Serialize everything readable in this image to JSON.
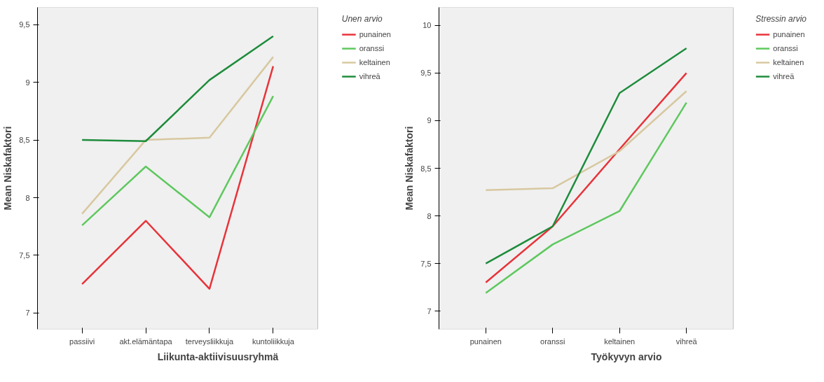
{
  "chart_data": [
    {
      "type": "line",
      "xlabel": "Liikunta-aktiivisuusryhmä",
      "ylabel": "Mean Niskafaktori",
      "legend_title": "Unen arvio",
      "legend": "top right",
      "grid": false,
      "categories": [
        "passiivi",
        "akt.elämäntapa",
        "terveysliikkuja",
        "kuntoliikkuja"
      ],
      "ylim": [
        6.86,
        9.65
      ],
      "yticks": [
        {
          "value": 7,
          "label": "7"
        },
        {
          "value": 7.5,
          "label": "7,5"
        },
        {
          "value": 8,
          "label": "8"
        },
        {
          "value": 8.5,
          "label": "8,5"
        },
        {
          "value": 9,
          "label": "9"
        },
        {
          "value": 9.5,
          "label": "9,5"
        }
      ],
      "series": [
        {
          "name": "punainen",
          "color": "#e8333a",
          "values": [
            7.25,
            7.8,
            7.21,
            9.14
          ]
        },
        {
          "name": "oranssi",
          "color": "#5ec85e",
          "values": [
            7.76,
            8.27,
            7.83,
            8.88
          ]
        },
        {
          "name": "keltainen",
          "color": "#d8c8a0",
          "values": [
            7.86,
            8.5,
            8.52,
            9.22
          ]
        },
        {
          "name": "vihreä",
          "color": "#1e8c3c",
          "values": [
            8.5,
            8.49,
            9.02,
            9.4
          ]
        }
      ]
    },
    {
      "type": "line",
      "xlabel": "Työkyvyn arvio",
      "ylabel": "Mean Niskafaktori",
      "legend_title": "Stressin arvio",
      "legend": "top right",
      "grid": false,
      "categories": [
        "punainen",
        "oranssi",
        "keltainen",
        "vihreä"
      ],
      "ylim": [
        6.81,
        10.19
      ],
      "yticks": [
        {
          "value": 7,
          "label": "7"
        },
        {
          "value": 7.5,
          "label": "7,5"
        },
        {
          "value": 8,
          "label": "8"
        },
        {
          "value": 8.5,
          "label": "8,5"
        },
        {
          "value": 9,
          "label": "9"
        },
        {
          "value": 9.5,
          "label": "9,5"
        },
        {
          "value": 10,
          "label": "10"
        }
      ],
      "series": [
        {
          "name": "punainen",
          "color": "#e8333a",
          "values": [
            7.3,
            7.89,
            8.7,
            9.5
          ]
        },
        {
          "name": "oranssi",
          "color": "#5ec85e",
          "values": [
            7.19,
            7.7,
            8.05,
            9.19
          ]
        },
        {
          "name": "keltainen",
          "color": "#d8c8a0",
          "values": [
            8.27,
            8.29,
            8.68,
            9.31
          ]
        },
        {
          "name": "vihreä",
          "color": "#1e8c3c",
          "values": [
            7.5,
            7.89,
            9.29,
            9.76
          ]
        }
      ]
    }
  ]
}
